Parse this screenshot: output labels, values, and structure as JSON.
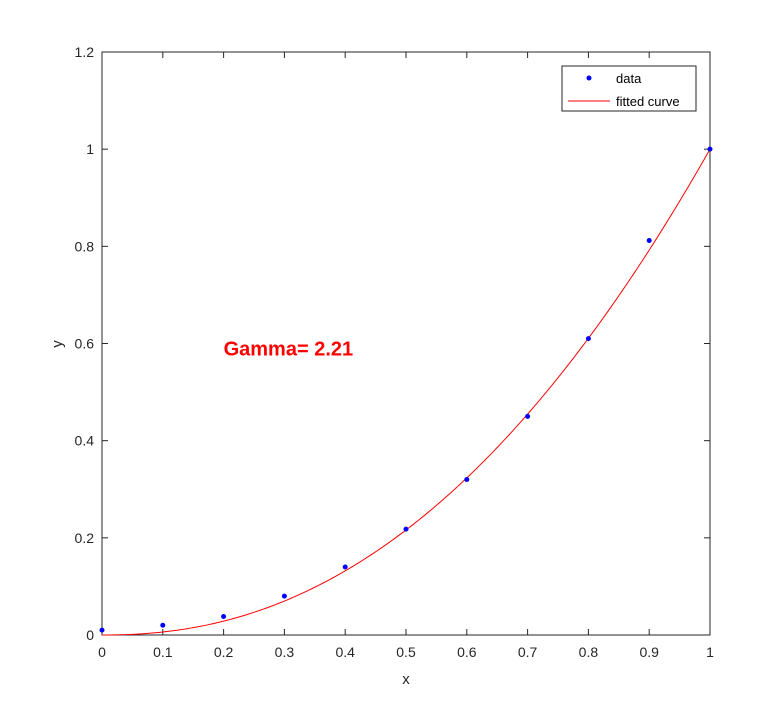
{
  "chart_data": {
    "type": "scatter",
    "xlabel": "x",
    "ylabel": "y",
    "xlim": [
      0,
      1
    ],
    "ylim": [
      0,
      1.2
    ],
    "xticks": [
      0,
      0.1,
      0.2,
      0.3,
      0.4,
      0.5,
      0.6,
      0.7,
      0.8,
      0.9,
      1
    ],
    "xtick_labels": [
      "0",
      "0.1",
      "0.2",
      "0.3",
      "0.4",
      "0.5",
      "0.6",
      "0.7",
      "0.8",
      "0.9",
      "1"
    ],
    "yticks": [
      0,
      0.2,
      0.4,
      0.6,
      0.8,
      1,
      1.2
    ],
    "ytick_labels": [
      "0",
      "0.2",
      "0.4",
      "0.6",
      "0.8",
      "1",
      "1.2"
    ],
    "grid": false,
    "legend_position": "top-right",
    "series": [
      {
        "name": "data",
        "kind": "markers",
        "color": "#0000ff",
        "x": [
          0,
          0.1,
          0.2,
          0.3,
          0.4,
          0.5,
          0.6,
          0.7,
          0.8,
          0.9,
          1
        ],
        "y": [
          0.01,
          0.02,
          0.038,
          0.08,
          0.14,
          0.218,
          0.32,
          0.45,
          0.61,
          0.812,
          1.0
        ]
      },
      {
        "name": "fitted curve",
        "kind": "line",
        "color": "#ff0000",
        "exponent": 2.21
      }
    ],
    "annotation": {
      "text": "Gamma= 2.21",
      "color": "#ff0000",
      "x": 0.2,
      "y": 0.59
    }
  }
}
